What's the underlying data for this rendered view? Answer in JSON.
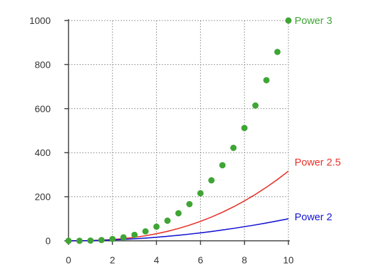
{
  "chart_data": {
    "type": "line",
    "title": "",
    "xlabel": "",
    "ylabel": "",
    "xlim": [
      0,
      10
    ],
    "ylim": [
      0,
      1000
    ],
    "x_ticks": [
      "0",
      "2",
      "4",
      "6",
      "8",
      "10"
    ],
    "y_ticks": [
      "0",
      "200",
      "400",
      "600",
      "800",
      "1000"
    ],
    "grid": true,
    "legend": "inline-right",
    "series": [
      {
        "name": "Power 3",
        "kind": "scatter",
        "color": "#3fa535",
        "x": [
          0,
          0.5,
          1,
          1.5,
          2,
          2.5,
          3,
          3.5,
          4,
          4.5,
          5,
          5.5,
          6,
          6.5,
          7,
          7.5,
          8,
          8.5,
          9,
          9.5,
          10
        ],
        "values": [
          0,
          0.125,
          1,
          3.375,
          8,
          15.625,
          27,
          42.875,
          64,
          91.125,
          125,
          166.375,
          216,
          274.625,
          343,
          421.875,
          512,
          614.125,
          729,
          857.375,
          1000
        ]
      },
      {
        "name": "Power 2.5",
        "kind": "line",
        "color": "#e8312a",
        "x": [
          0,
          0.5,
          1,
          1.5,
          2,
          2.5,
          3,
          3.5,
          4,
          4.5,
          5,
          5.5,
          6,
          6.5,
          7,
          7.5,
          8,
          8.5,
          9,
          9.5,
          10
        ],
        "values": [
          0,
          0.18,
          1,
          2.76,
          5.66,
          9.88,
          15.59,
          22.92,
          32,
          42.96,
          55.9,
          70.94,
          88.18,
          107.72,
          129.64,
          154.05,
          181.02,
          210.64,
          243,
          278.17,
          316.23
        ]
      },
      {
        "name": "Power 2",
        "kind": "line",
        "color": "#1515d4",
        "x": [
          0,
          0.5,
          1,
          1.5,
          2,
          2.5,
          3,
          3.5,
          4,
          4.5,
          5,
          5.5,
          6,
          6.5,
          7,
          7.5,
          8,
          8.5,
          9,
          9.5,
          10
        ],
        "values": [
          0,
          0.25,
          1,
          2.25,
          4,
          6.25,
          9,
          12.25,
          16,
          20.25,
          25,
          30.25,
          36,
          42.25,
          49,
          56.25,
          64,
          72.25,
          81,
          90.25,
          100
        ]
      }
    ]
  }
}
